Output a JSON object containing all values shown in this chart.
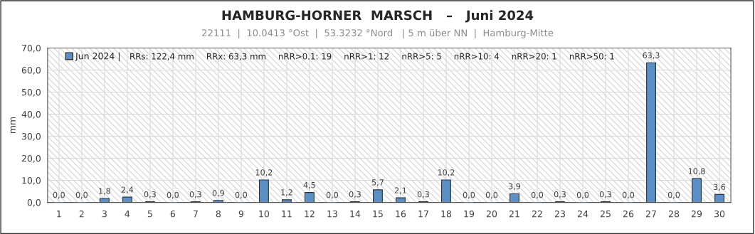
{
  "chart_data": {
    "type": "bar",
    "title": "HAMBURG-HORNER  MARSCH   –   Juni 2024",
    "subtitle": "22111  |  10.0413 °Ost  |  53.3232 °Nord   | 5 m über NN  |  Hamburg-Mitte",
    "ylabel": "mm",
    "categories": [
      "1",
      "2",
      "3",
      "4",
      "5",
      "6",
      "7",
      "8",
      "9",
      "10",
      "11",
      "12",
      "13",
      "14",
      "15",
      "16",
      "17",
      "18",
      "19",
      "20",
      "21",
      "22",
      "23",
      "24",
      "25",
      "26",
      "27",
      "28",
      "29",
      "30"
    ],
    "series": [
      {
        "name": "Jun 2024 |",
        "color": "#5b8fc7",
        "values": [
          0.0,
          0.0,
          1.8,
          2.4,
          0.3,
          0.0,
          0.3,
          0.9,
          0.0,
          10.2,
          1.2,
          4.5,
          0.0,
          0.3,
          5.7,
          2.1,
          0.3,
          10.2,
          0.0,
          0.0,
          3.9,
          0.0,
          0.3,
          0.0,
          0.3,
          0.0,
          63.3,
          0.0,
          10.8,
          3.6
        ],
        "value_labels": [
          "0,0",
          "0,0",
          "1,8",
          "2,4",
          "0,3",
          "0,0",
          "0,3",
          "0,9",
          "0,0",
          "10,2",
          "1,2",
          "4,5",
          "0,0",
          "0,3",
          "5,7",
          "2,1",
          "0,3",
          "10,2",
          "0,0",
          "0,0",
          "3,9",
          "0,0",
          "0,3",
          "0,0",
          "0,3",
          "0,0",
          "63,3",
          "0,0",
          "10,8",
          "3,6"
        ]
      }
    ],
    "annotations": [
      "RRs: 122,4 mm",
      "RRx: 63,3 mm",
      "nRR>0.1: 19",
      "nRR>1: 12",
      "nRR>5: 5",
      "nRR>10: 4",
      "nRR>20: 1",
      "nRR>50: 1"
    ],
    "ylim": [
      0,
      70
    ],
    "yticks": [
      {
        "value": 0,
        "label": "0,0"
      },
      {
        "value": 10,
        "label": "10,0"
      },
      {
        "value": 20,
        "label": "20,0"
      },
      {
        "value": 30,
        "label": "30,0"
      },
      {
        "value": 40,
        "label": "40,0"
      },
      {
        "value": 50,
        "label": "50,0"
      },
      {
        "value": 60,
        "label": "60,0"
      },
      {
        "value": 70,
        "label": "70,0"
      }
    ],
    "grid": true,
    "legend": "top left"
  }
}
